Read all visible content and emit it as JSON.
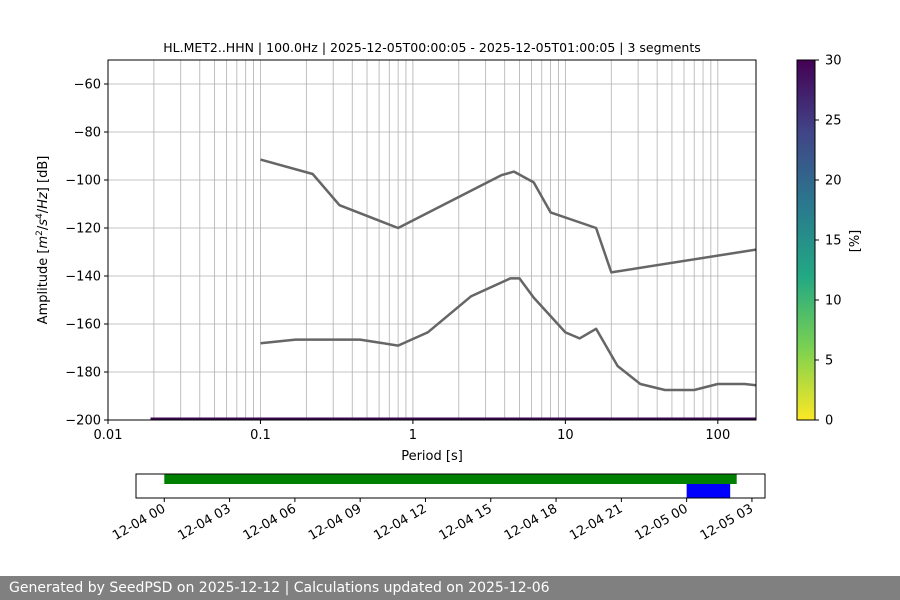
{
  "chart_data": [
    {
      "type": "line",
      "title": "HL.MET2..HHN | 100.0Hz | 2025-12-05T00:00:05 - 2025-12-05T01:00:05 | 3 segments",
      "xlabel": "Period [s]",
      "ylabel": "Amplitude [m^2/s^4/Hz] [dB]",
      "xscale": "log",
      "xlim": [
        0.01,
        178
      ],
      "ylim": [
        -200,
        -50
      ],
      "xticklabels": [
        "0.01",
        "0.1",
        "1",
        "10",
        "100"
      ],
      "xticks": [
        0.01,
        0.1,
        1,
        10,
        100
      ],
      "yticks": [
        -60,
        -80,
        -100,
        -120,
        -140,
        -160,
        -180,
        -200
      ],
      "yticklabels": [
        "−60",
        "−80",
        "−100",
        "−120",
        "−140",
        "−160",
        "−180",
        "−200"
      ],
      "grid": true,
      "series": [
        {
          "color": "#666666",
          "x": [
            0.1,
            0.22,
            0.33,
            0.8,
            3.8,
            4.6,
            6.2,
            8.0,
            15.9,
            20.0,
            178
          ],
          "y": [
            -91.5,
            -97.5,
            -110.5,
            -120,
            -98,
            -96.5,
            -101,
            -113.5,
            -120,
            -138.5,
            -129
          ]
        },
        {
          "color": "#666666",
          "x": [
            0.1,
            0.17,
            0.3,
            0.45,
            0.8,
            1.25,
            2.4,
            4.35,
            5.0,
            6.2,
            10.0,
            12.4,
            15.9,
            22.0,
            31.0,
            45.0,
            70.0,
            100.0,
            150.0,
            178.0
          ],
          "y": [
            -168,
            -166.5,
            -166.5,
            -166.5,
            -169,
            -163.5,
            -148.5,
            -141,
            -141,
            -149,
            -163.5,
            -166,
            -162,
            -177.5,
            -185,
            -187.5,
            -187.5,
            -185,
            -185,
            -185.5
          ]
        }
      ],
      "baseline": {
        "color": "#3a0a4f",
        "x": [
          0.019,
          178
        ],
        "y": -200
      },
      "colorbar": {
        "label": "[%]",
        "range": [
          0,
          30
        ],
        "ticks": [
          "0",
          "5",
          "10",
          "15",
          "20",
          "25",
          "30"
        ],
        "colormap": "viridis_r"
      }
    },
    {
      "type": "timeline",
      "xticklabels": [
        "12-04 00",
        "12-04 03",
        "12-04 06",
        "12-04 09",
        "12-04 12",
        "12-04 15",
        "12-04 18",
        "12-04 21",
        "12-05 00",
        "12-05 03"
      ],
      "xticks_hours": [
        0,
        3,
        6,
        9,
        12,
        15,
        18,
        21,
        24,
        27
      ],
      "xlim_hours": [
        -1.3,
        27.6
      ],
      "bars": [
        {
          "color": "#008000",
          "start_hours": 0.0,
          "end_hours": 26.3,
          "lane": "upper"
        },
        {
          "color": "#0000ff",
          "start_hours": 24.0,
          "end_hours": 26.0,
          "lane": "lower"
        }
      ]
    }
  ],
  "footer": {
    "text": "Generated by SeedPSD on 2025-12-12 | Calculations updated on 2025-12-06"
  }
}
